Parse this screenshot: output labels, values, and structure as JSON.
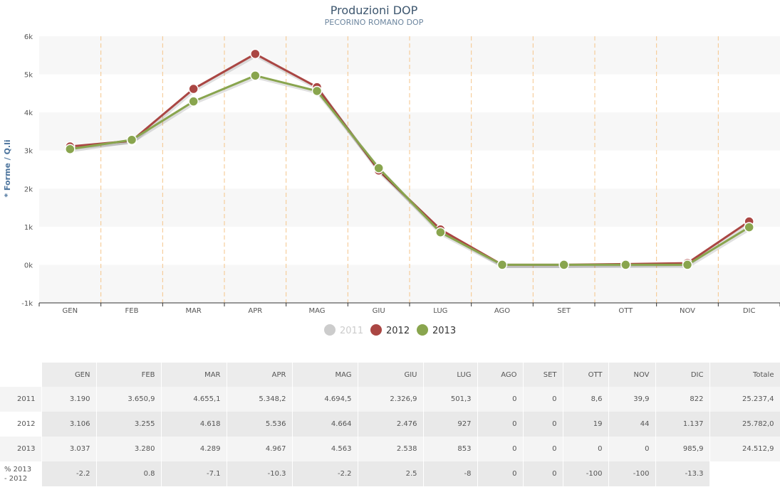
{
  "chart_data": {
    "type": "line",
    "title": "Produzioni DOP",
    "subtitle": "PECORINO ROMANO DOP",
    "ylabel": "* Forme / Q.li",
    "xlabel": "",
    "categories": [
      "GEN",
      "FEB",
      "MAR",
      "APR",
      "MAG",
      "GIU",
      "LUG",
      "AGO",
      "SET",
      "OTT",
      "NOV",
      "DIC"
    ],
    "ylim": [
      -1000,
      6000
    ],
    "yticks": [
      -1000,
      0,
      1000,
      2000,
      3000,
      4000,
      5000,
      6000
    ],
    "ytick_labels": [
      "-1k",
      "0k",
      "1k",
      "2k",
      "3k",
      "4k",
      "5k",
      "6k"
    ],
    "grid": "alternating bands",
    "legend_position": "bottom-center",
    "series": [
      {
        "name": "2011",
        "color": "#cccccc",
        "hidden": true,
        "values": [
          3190,
          3650.9,
          4655.1,
          5348.2,
          4694.5,
          2326.9,
          501.3,
          0,
          0,
          8.6,
          39.9,
          822
        ]
      },
      {
        "name": "2012",
        "color": "#aa4643",
        "values": [
          3106,
          3255,
          4618,
          5536,
          4664,
          2476,
          927,
          0,
          0,
          19,
          44,
          1137
        ]
      },
      {
        "name": "2013",
        "color": "#89a54e",
        "values": [
          3037,
          3280,
          4289,
          4967,
          4563,
          2538,
          853,
          0,
          0,
          0,
          0,
          985.9
        ]
      }
    ]
  },
  "table": {
    "headers": [
      "",
      "GEN",
      "FEB",
      "MAR",
      "APR",
      "MAG",
      "GIU",
      "LUG",
      "AGO",
      "SET",
      "OTT",
      "NOV",
      "DIC",
      "Totale"
    ],
    "rows": [
      {
        "label": "2011",
        "cells": [
          "3.190",
          "3.650,9",
          "4.655,1",
          "5.348,2",
          "4.694,5",
          "2.326,9",
          "501,3",
          "0",
          "0",
          "8,6",
          "39,9",
          "822",
          "25.237,4"
        ]
      },
      {
        "label": "2012",
        "cells": [
          "3.106",
          "3.255",
          "4.618",
          "5.536",
          "4.664",
          "2.476",
          "927",
          "0",
          "0",
          "19",
          "44",
          "1.137",
          "25.782,0"
        ]
      },
      {
        "label": "2013",
        "cells": [
          "3.037",
          "3.280",
          "4.289",
          "4.967",
          "4.563",
          "2.538",
          "853",
          "0",
          "0",
          "0",
          "0",
          "985,9",
          "24.512,9"
        ]
      },
      {
        "label": "% 2013 - 2012",
        "cells": [
          "-2.2",
          "0.8",
          "-7.1",
          "-10.3",
          "-2.2",
          "2.5",
          "-8",
          "0",
          "0",
          "-100",
          "-100",
          "-13.3",
          ""
        ]
      }
    ]
  }
}
